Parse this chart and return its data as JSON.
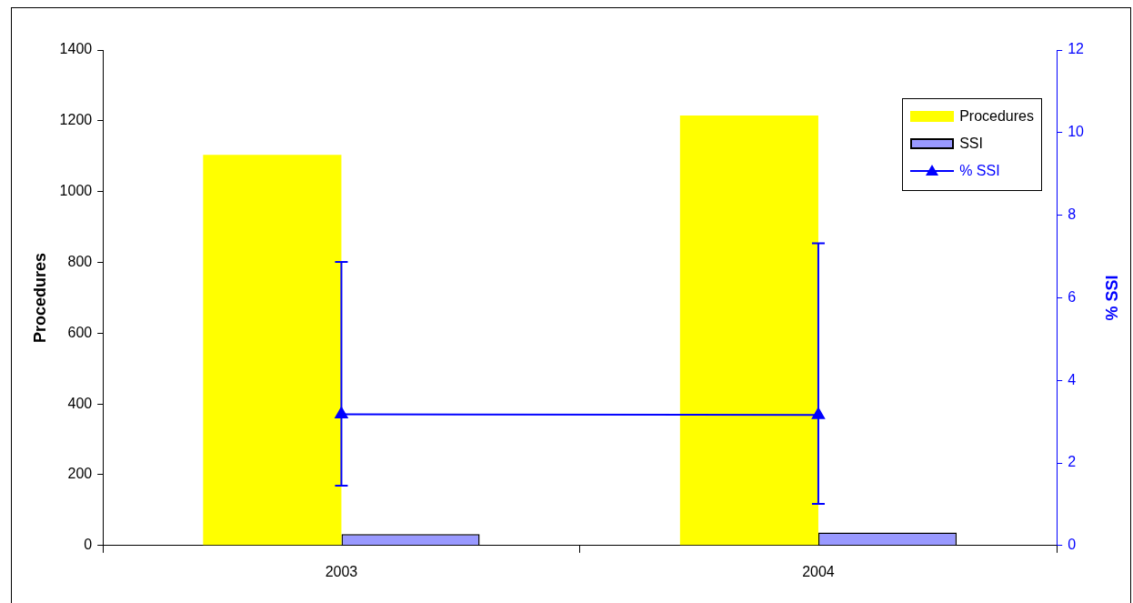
{
  "chart_data": {
    "type": "bar",
    "categories": [
      "2003",
      "2004"
    ],
    "ylabel": "Procedures",
    "y2label": "% SSI",
    "ylim": [
      0,
      1400
    ],
    "yticks": [
      0,
      200,
      400,
      600,
      800,
      1000,
      1200,
      1400
    ],
    "y2lim": [
      0,
      12
    ],
    "y2ticks": [
      0,
      2,
      4,
      6,
      8,
      10,
      12
    ],
    "grid": false,
    "legend": "top right",
    "series": [
      {
        "name": "Procedures",
        "color": "#ffff00",
        "values": [
          1104,
          1215
        ]
      },
      {
        "name": "SSI",
        "color": "#9999ff",
        "values": [
          32,
          37
        ]
      },
      {
        "name": "% SSI",
        "type": "line",
        "axis": "y2",
        "color": "#0000ff",
        "marker": "triangle",
        "values": [
          3.18,
          3.16
        ],
        "errors": [
          [
            1.45,
            6.87
          ],
          [
            1.01,
            7.32
          ]
        ]
      }
    ]
  }
}
